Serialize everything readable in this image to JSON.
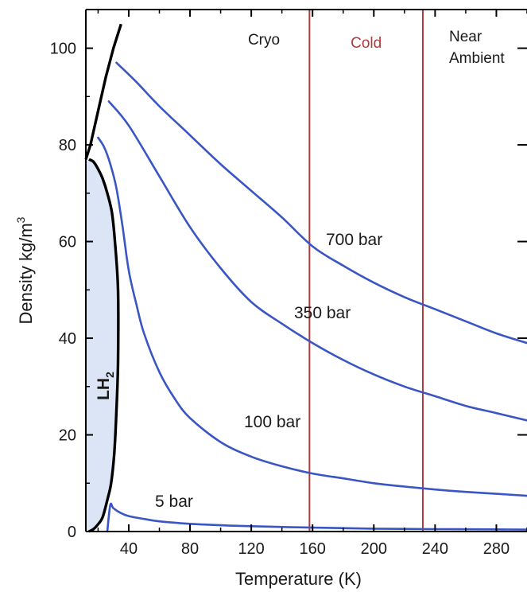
{
  "chart_data": {
    "type": "line",
    "xlabel": "Temperature (K)",
    "ylabel_main": "Density kg/m",
    "ylabel_sup": "3",
    "xlim": [
      12,
      300
    ],
    "ylim": [
      0,
      108
    ],
    "x_ticks": [
      40,
      80,
      120,
      160,
      200,
      240,
      280
    ],
    "y_ticks": [
      0,
      20,
      40,
      60,
      80,
      100
    ],
    "grid": false,
    "series_color": "#3a55c4",
    "saturation_color": "#000000",
    "series": [
      {
        "name": "700 bar",
        "x": [
          32,
          45,
          60,
          80,
          100,
          120,
          140,
          160,
          180,
          200,
          220,
          240,
          260,
          280,
          300
        ],
        "y": [
          97,
          93,
          88,
          82,
          76,
          70.5,
          65,
          59,
          55,
          51.5,
          48.5,
          46,
          43.5,
          41,
          39
        ]
      },
      {
        "name": "350 bar",
        "x": [
          27,
          40,
          60,
          80,
          100,
          120,
          140,
          160,
          180,
          200,
          220,
          240,
          260,
          280,
          300
        ],
        "y": [
          89,
          84,
          73.5,
          63,
          54.5,
          47.5,
          43,
          39,
          35.5,
          32.5,
          30,
          28,
          26,
          24.5,
          23
        ]
      },
      {
        "name": "100 bar",
        "x": [
          20,
          24,
          28,
          32,
          36,
          40,
          45,
          50,
          60,
          70,
          80,
          100,
          120,
          140,
          160,
          180,
          200,
          220,
          240,
          260,
          280,
          300
        ],
        "y": [
          81.5,
          79.5,
          76,
          71,
          63,
          54,
          47,
          41,
          33,
          27.5,
          23.5,
          18.5,
          15.5,
          13.5,
          12,
          11,
          10,
          9.3,
          8.7,
          8.2,
          7.8,
          7.4
        ]
      },
      {
        "name": "5 bar",
        "x": [
          26,
          28,
          30,
          35,
          40,
          50,
          60,
          80,
          100,
          120,
          160,
          200,
          240,
          280,
          300
        ],
        "y": [
          0,
          5.5,
          4.8,
          3.8,
          3.2,
          2.6,
          2.1,
          1.6,
          1.3,
          1.1,
          0.8,
          0.6,
          0.5,
          0.45,
          0.4
        ]
      }
    ],
    "saturation_curve": {
      "name": "LH2",
      "x": [
        14,
        17,
        20,
        23,
        26,
        28.5,
        30.5,
        32,
        33,
        33,
        31,
        29,
        26,
        23,
        20,
        17,
        14
      ],
      "y": [
        0,
        0.5,
        1.5,
        3,
        6.5,
        10,
        16,
        25,
        35,
        50,
        60,
        66,
        70,
        73,
        75,
        76.5,
        77
      ]
    },
    "melting_curve": {
      "x": [
        12,
        15,
        20,
        25,
        30,
        35
      ],
      "y": [
        77,
        80,
        87,
        94,
        100,
        105
      ]
    },
    "regions": [
      {
        "name": "Cryo",
        "x_range": [
          12,
          160
        ],
        "label": "Cryo",
        "color": "#1a1a1a",
        "boxed": false
      },
      {
        "name": "Cold",
        "x_range": [
          158,
          232
        ],
        "label": "Cold",
        "color": "#b03a3a",
        "boxed": true
      },
      {
        "name": "Near Ambient",
        "x_range": [
          232,
          300
        ],
        "label_line1": "Near",
        "label_line2": "Ambient",
        "color": "#1a1a1a",
        "boxed": false
      }
    ],
    "lh2_label_main": "LH",
    "lh2_label_sub": "2",
    "lh2_fill_color": "#dbe5f5"
  }
}
